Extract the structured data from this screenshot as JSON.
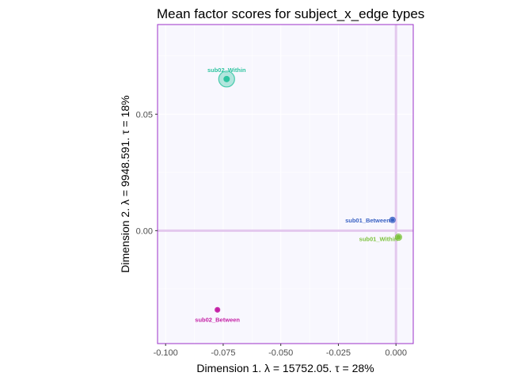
{
  "chart_data": {
    "type": "scatter",
    "title": "Mean factor scores for subject_x_edge types",
    "xlabel": "Dimension 1.   λ = 15752.05.  τ = 28%",
    "ylabel": "Dimension 2.   λ = 9948.591.  τ = 18%",
    "xlim": [
      -0.1035,
      0.0075
    ],
    "ylim": [
      -0.0485,
      0.0885
    ],
    "x_ticks": [
      -0.1,
      -0.075,
      -0.05,
      -0.025,
      0.0
    ],
    "x_tick_labels": [
      "-0.100",
      "-0.075",
      "-0.050",
      "-0.025",
      "0.000"
    ],
    "y_ticks": [
      -0.05,
      0.0,
      0.05
    ],
    "y_tick_labels": [
      "",
      "0.00",
      "0.05"
    ],
    "grid": true,
    "origin_lines": true,
    "panel_background": "#f8f7fe",
    "panel_border_color": "#9b30c8",
    "origin_line_color": "#e3c8ee",
    "points": [
      {
        "label": "sub02_Within",
        "x": -0.0735,
        "y": 0.0651,
        "color": "#2ec4a0",
        "size": 4,
        "halo": 10
      },
      {
        "label": "sub01_Between",
        "x": -0.0015,
        "y": 0.0046,
        "color": "#3a62c4",
        "size": 2.5,
        "halo": 3.5
      },
      {
        "label": "sub01_Within",
        "x": 0.0011,
        "y": -0.0028,
        "color": "#7cc23c",
        "size": 3,
        "halo": 4
      },
      {
        "label": "sub02_Between",
        "x": -0.0775,
        "y": -0.034,
        "color": "#c41fa5",
        "size": 2.5,
        "halo": 3
      }
    ]
  }
}
